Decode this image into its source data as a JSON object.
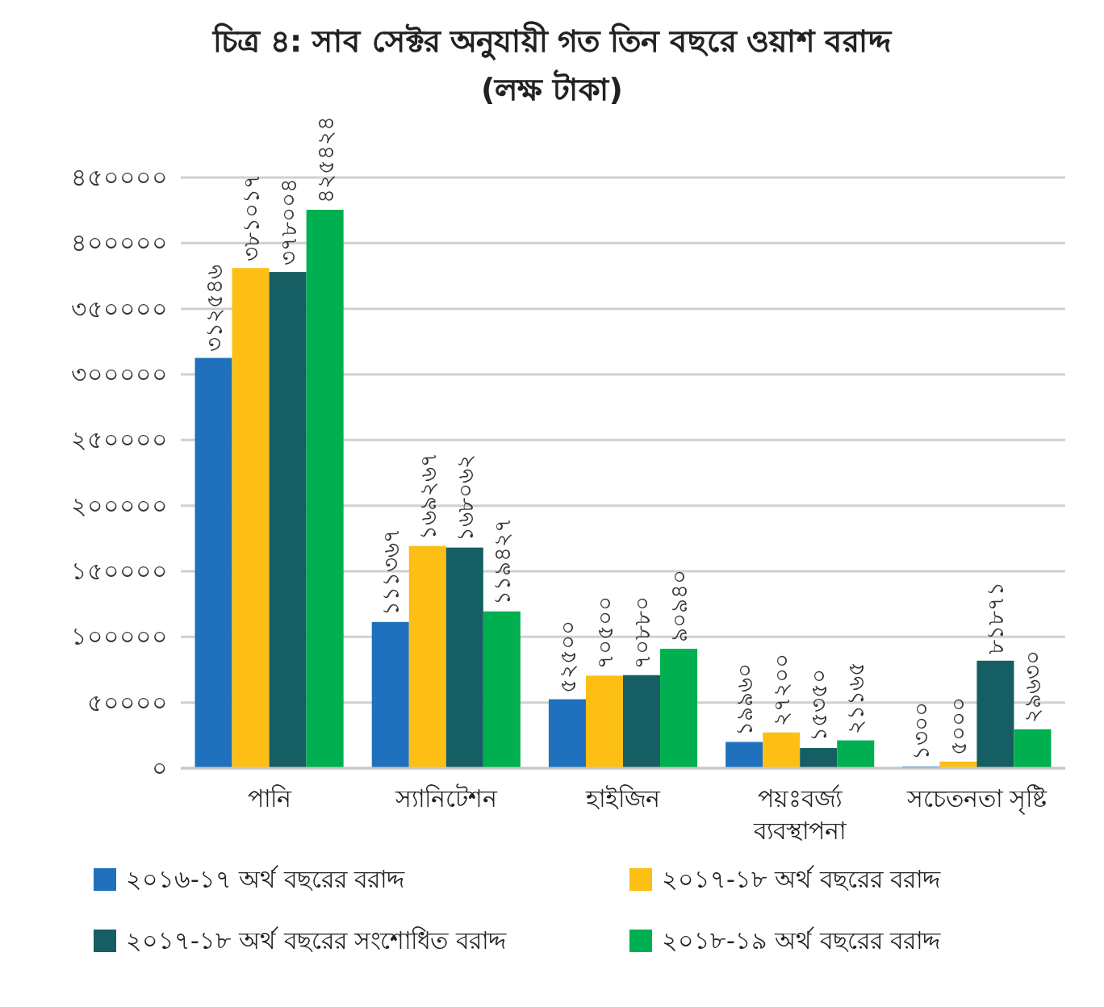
{
  "chart_data": {
    "type": "bar",
    "title": "চিত্র ৪: সাব সেক্টর অনুযায়ী গত তিন বছরে ওয়াশ বরাদ্দ",
    "subtitle": "(লক্ষ টাকা)",
    "categories": [
      "পানি",
      "স্যানিটেশন",
      "হাইজিন",
      "পয়ঃবর্জ্য ব্যবস্থাপনা",
      "সচেতনতা সৃষ্টি"
    ],
    "series": [
      {
        "name": "২০১৬-১৭ অর্থ বছরের বরাদ্দ",
        "color": "#1f70bd",
        "values": [
          312546,
          111367,
          52500,
          19960,
          1300
        ],
        "value_labels": [
          "৩১২৫৪৬",
          "১১১৩৬৭",
          "৫২৫০০",
          "১৯৯৬০",
          "১৩০০"
        ]
      },
      {
        "name": "২০১৭-১৮ অর্থ বছরের বরাদ্দ",
        "color": "#fdbf14",
        "values": [
          381017,
          169267,
          70500,
          27200,
          5000
        ],
        "value_labels": [
          "৩৮১০১৭",
          "১৬৯২৬৭",
          "৭০৫০০",
          "২৭২০০",
          "৫০০০"
        ]
      },
      {
        "name": "২০১৭-১৮ অর্থ বছরের সংশোধিত বরাদ্দ",
        "color": "#155e63",
        "values": [
          378004,
          168062,
          70880,
          15350,
          81871
        ],
        "value_labels": [
          "৩৭৮০০৪",
          "১৬৮০৬২",
          "৭০৮৮০",
          "১৫৩৫০",
          "৮১৮৭১"
        ]
      },
      {
        "name": "২০১৮-১৯ অর্থ বছরের বরাদ্দ",
        "color": "#00b050",
        "values": [
          425424,
          119427,
          90940,
          21165,
          29630
        ],
        "value_labels": [
          "৪২৫৪২৪",
          "১১৯৪২৭",
          "৯০৯৪০",
          "২১১৬৫",
          "২৯৬৩০"
        ]
      }
    ],
    "ylim": [
      0,
      450000
    ],
    "yticks": [
      {
        "value": 0,
        "label": "০"
      },
      {
        "value": 50000,
        "label": "৫০০০০"
      },
      {
        "value": 100000,
        "label": "১০০০০০"
      },
      {
        "value": 150000,
        "label": "১৫০০০০"
      },
      {
        "value": 200000,
        "label": "২০০০০০"
      },
      {
        "value": 250000,
        "label": "২৫০০০০"
      },
      {
        "value": 300000,
        "label": "৩০০০০০"
      },
      {
        "value": 350000,
        "label": "৩৫০০০০"
      },
      {
        "value": 400000,
        "label": "৪০০০০০"
      },
      {
        "value": 450000,
        "label": "৪৫০০০০"
      }
    ],
    "grid": "y",
    "legend": "bottom"
  }
}
